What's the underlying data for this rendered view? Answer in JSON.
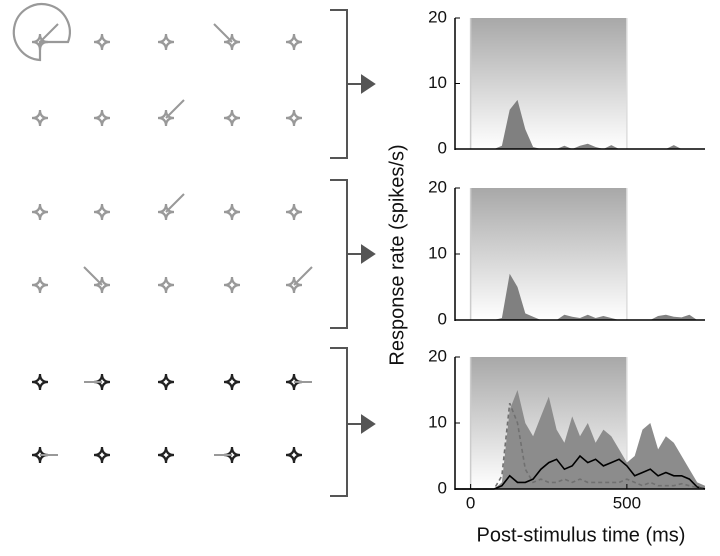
{
  "chart_data": [
    {
      "type": "psth",
      "xlim": [
        -50,
        750
      ],
      "ylim": [
        0,
        20
      ],
      "yticks": [
        0,
        10,
        20
      ],
      "stimulus_window": [
        0,
        500
      ],
      "x": [
        -50,
        -25,
        0,
        25,
        50,
        75,
        100,
        125,
        150,
        175,
        200,
        225,
        250,
        275,
        300,
        325,
        350,
        375,
        400,
        425,
        450,
        475,
        500,
        525,
        550,
        575,
        600,
        625,
        650,
        675,
        700,
        725,
        750
      ],
      "series": [
        {
          "kind": "area",
          "color": "#808080",
          "values": [
            0,
            0,
            0,
            0,
            0,
            0,
            0.5,
            6,
            7.5,
            3,
            0.3,
            0,
            0,
            0,
            0.5,
            0,
            0.5,
            0.8,
            0.3,
            0,
            0.6,
            0,
            0,
            0,
            0,
            0,
            0,
            0,
            0.6,
            0,
            0,
            0,
            0
          ]
        }
      ]
    },
    {
      "type": "psth",
      "xlim": [
        -50,
        750
      ],
      "ylim": [
        0,
        20
      ],
      "yticks": [
        0,
        10,
        20
      ],
      "stimulus_window": [
        0,
        500
      ],
      "ylabel": "Response rate (spikes/s)",
      "x": [
        -50,
        -25,
        0,
        25,
        50,
        75,
        100,
        125,
        150,
        175,
        200,
        225,
        250,
        275,
        300,
        325,
        350,
        375,
        400,
        425,
        450,
        475,
        500,
        525,
        550,
        575,
        600,
        625,
        650,
        675,
        700,
        725,
        750
      ],
      "series": [
        {
          "kind": "area",
          "color": "#808080",
          "values": [
            0,
            0,
            0,
            0,
            0,
            0,
            0.3,
            7,
            5,
            1,
            0.5,
            0,
            0,
            0,
            0.8,
            0.5,
            0.3,
            0.8,
            0.3,
            0.6,
            0.3,
            0,
            0,
            0,
            0,
            0,
            0.6,
            0.8,
            0.5,
            0.4,
            0.8,
            0,
            0
          ]
        }
      ]
    },
    {
      "type": "psth",
      "xlim": [
        -50,
        750
      ],
      "ylim": [
        0,
        20
      ],
      "yticks": [
        0,
        10,
        20
      ],
      "xticks": [
        0,
        500
      ],
      "stimulus_window": [
        0,
        500
      ],
      "xlabel": "Post-stimulus time (ms)",
      "x": [
        -50,
        -25,
        0,
        25,
        50,
        75,
        100,
        125,
        150,
        175,
        200,
        225,
        250,
        275,
        300,
        325,
        350,
        375,
        400,
        425,
        450,
        475,
        500,
        525,
        550,
        575,
        600,
        625,
        650,
        675,
        700,
        725,
        750
      ],
      "series": [
        {
          "kind": "area",
          "color": "#8c8c8c",
          "values": [
            0,
            0,
            0,
            0,
            0,
            0,
            1,
            12,
            15,
            10,
            8,
            11,
            14,
            9,
            7,
            11,
            8,
            10,
            7,
            9,
            8,
            6,
            4,
            5,
            9,
            10,
            6,
            8,
            7,
            5,
            3,
            1,
            0.5
          ]
        },
        {
          "kind": "line",
          "color": "#000000",
          "values": [
            0,
            0,
            0,
            0,
            0,
            0,
            0.5,
            2,
            1,
            1,
            1.5,
            3,
            4,
            4.5,
            3,
            3.5,
            5,
            4,
            4.5,
            3.5,
            4,
            4.5,
            3.5,
            2,
            2.5,
            3,
            2,
            2.5,
            2,
            2,
            1.5,
            0.3,
            0
          ]
        },
        {
          "kind": "dashed",
          "color": "#707070",
          "values": [
            0,
            0,
            0,
            0,
            0,
            0,
            2,
            13,
            10,
            3,
            1,
            1.5,
            1,
            1,
            1.5,
            1,
            1.5,
            1,
            1,
            1,
            1,
            1,
            1.5,
            1,
            0.5,
            1,
            0.5,
            0.5,
            0.5,
            0.8,
            0.5,
            0.2,
            0
          ]
        }
      ]
    }
  ]
}
